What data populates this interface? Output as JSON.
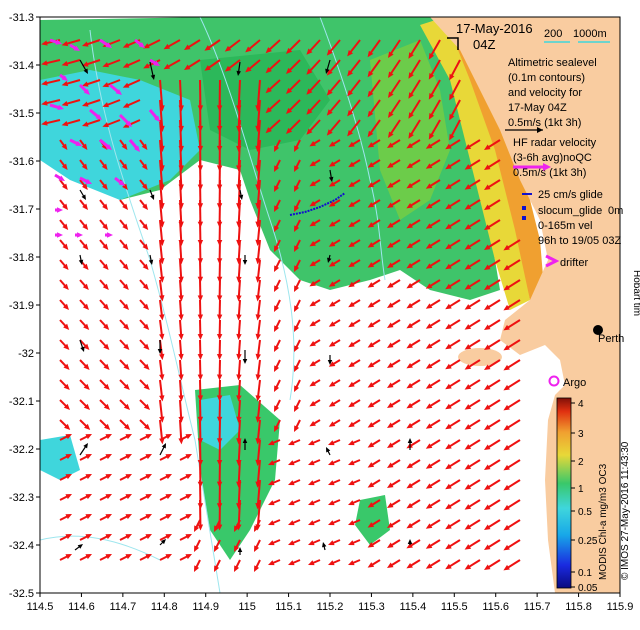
{
  "map": {
    "title_date": "17-May-2016",
    "title_time": "04Z",
    "scale_label": "200",
    "scale_label_2": "1000m",
    "legend": {
      "altimetry_lines": [
        "Altimetric sealevel",
        "(0.1m contours)",
        "and velocity for",
        "17-May 04Z",
        "0.5m/s (1kt 3h)"
      ],
      "hf_lines": [
        "HF radar velocity",
        "(3-6h avg)noQC",
        "0.5m/s (1kt 3h)"
      ],
      "glider_lines": [
        "25 cm/s glide",
        "slocum_glide",
        "0-165m vel",
        "96h to 19/05 03Z"
      ],
      "glider_depth": "0m",
      "drifter": "drifter",
      "argo": "Argo",
      "perth": "Perth",
      "hobart": "Hobart tim"
    },
    "colorbar": {
      "ticks": [
        "4",
        "3",
        "2",
        "1",
        "0.5",
        "0.25",
        "0.1",
        "0.05"
      ],
      "label": "MODIS Chl-a mg/m3 OC3",
      "credit": "© IMOS 27-May-2016 11:43:30"
    },
    "x_axis": {
      "ticks": [
        "114.5",
        "114.6",
        "114.7",
        "114.8",
        "114.9",
        "115",
        "115.1",
        "115.2",
        "115.3",
        "115.4",
        "115.5",
        "115.6",
        "115.7",
        "115.8",
        "115.9"
      ],
      "range": [
        114.5,
        115.9
      ]
    },
    "y_axis": {
      "ticks": [
        "-31.3",
        "-31.4",
        "-31.5",
        "-31.6",
        "-31.7",
        "-31.8",
        "-31.9",
        "-32",
        "-32.1",
        "-32.2",
        "-32.3",
        "-32.4",
        "-32.5"
      ],
      "range": [
        -32.5,
        -31.3
      ]
    },
    "colors": {
      "land": "#f9cca0",
      "chl_cyan": "#3fd6dc",
      "chl_green": "#39c86a",
      "chl_yellow": "#e8d838",
      "chl_orange": "#f0a030",
      "hf_arrow": "#ee1111",
      "altimetry_arrow": "#000000",
      "drifter": "#ee22ee",
      "glider": "#1111cc"
    }
  }
}
